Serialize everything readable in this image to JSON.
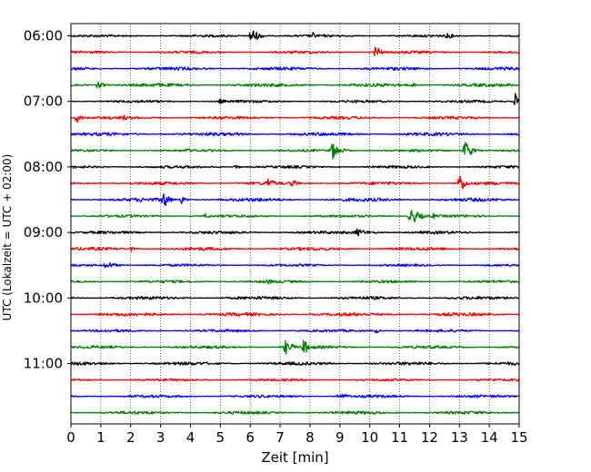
{
  "chart_data": {
    "type": "line",
    "title": "",
    "xlabel": "Zeit  [min]",
    "ylabel": "UTC (Lokalzeit = UTC + 02:00)",
    "xlim": [
      0,
      15
    ],
    "x_ticks": [
      0,
      1,
      2,
      3,
      4,
      5,
      6,
      7,
      8,
      9,
      10,
      11,
      12,
      13,
      14,
      15
    ],
    "y_tick_labels": [
      "06:00",
      "07:00",
      "08:00",
      "09:00",
      "10:00",
      "11:00"
    ],
    "y_tick_traces": [
      0,
      4,
      8,
      12,
      16,
      20
    ],
    "trace_count": 24,
    "trace_interval_min": 15,
    "start_time_utc": "06:00",
    "color_cycle": [
      "#000000",
      "#ff0000",
      "#0000ff",
      "#008000"
    ],
    "grid": {
      "x": true,
      "style": "dotted"
    },
    "events": [
      {
        "trace": 0,
        "minute": 6.05,
        "amp": 9,
        "dur": 0.5
      },
      {
        "trace": 0,
        "minute": 8.1,
        "amp": 4,
        "dur": 0.3
      },
      {
        "trace": 0,
        "minute": 12.6,
        "amp": 4,
        "dur": 0.4
      },
      {
        "trace": 1,
        "minute": 10.2,
        "amp": 10,
        "dur": 0.3
      },
      {
        "trace": 3,
        "minute": 0.9,
        "amp": 4,
        "dur": 0.5
      },
      {
        "trace": 3,
        "minute": 11.4,
        "amp": 3,
        "dur": 0.4
      },
      {
        "trace": 4,
        "minute": 14.85,
        "amp": 14,
        "dur": 0.15
      },
      {
        "trace": 4,
        "minute": 5.0,
        "amp": 3,
        "dur": 0.4
      },
      {
        "trace": 5,
        "minute": 0.2,
        "amp": 6,
        "dur": 0.35
      },
      {
        "trace": 5,
        "minute": 1.75,
        "amp": 4,
        "dur": 0.3
      },
      {
        "trace": 6,
        "minute": 5.6,
        "amp": 3,
        "dur": 0.3
      },
      {
        "trace": 7,
        "minute": 8.75,
        "amp": 10,
        "dur": 0.5
      },
      {
        "trace": 7,
        "minute": 13.2,
        "amp": 12,
        "dur": 0.4
      },
      {
        "trace": 7,
        "minute": 3.9,
        "amp": 3,
        "dur": 0.3
      },
      {
        "trace": 8,
        "minute": 5.5,
        "amp": 3,
        "dur": 0.3
      },
      {
        "trace": 9,
        "minute": 6.6,
        "amp": 6,
        "dur": 0.5
      },
      {
        "trace": 9,
        "minute": 7.4,
        "amp": 5,
        "dur": 0.4
      },
      {
        "trace": 9,
        "minute": 13.0,
        "amp": 12,
        "dur": 0.4
      },
      {
        "trace": 10,
        "minute": 3.1,
        "amp": 10,
        "dur": 0.4
      },
      {
        "trace": 10,
        "minute": 3.7,
        "amp": 5,
        "dur": 0.3
      },
      {
        "trace": 10,
        "minute": 2.3,
        "amp": 3,
        "dur": 0.5
      },
      {
        "trace": 11,
        "minute": 11.4,
        "amp": 9,
        "dur": 0.6
      },
      {
        "trace": 11,
        "minute": 12.1,
        "amp": 4,
        "dur": 0.3
      },
      {
        "trace": 11,
        "minute": 4.5,
        "amp": 3,
        "dur": 0.4
      },
      {
        "trace": 12,
        "minute": 9.6,
        "amp": 4,
        "dur": 0.9
      },
      {
        "trace": 13,
        "minute": 2.0,
        "amp": 3,
        "dur": 0.3
      },
      {
        "trace": 14,
        "minute": 1.2,
        "amp": 4,
        "dur": 0.7
      },
      {
        "trace": 15,
        "minute": 6.6,
        "amp": 3,
        "dur": 0.6
      },
      {
        "trace": 18,
        "minute": 10.2,
        "amp": 3,
        "dur": 0.3
      },
      {
        "trace": 19,
        "minute": 7.2,
        "amp": 8,
        "dur": 0.5
      },
      {
        "trace": 19,
        "minute": 7.8,
        "amp": 9,
        "dur": 0.4
      },
      {
        "trace": 22,
        "minute": 9.0,
        "amp": 4,
        "dur": 0.6
      }
    ]
  }
}
